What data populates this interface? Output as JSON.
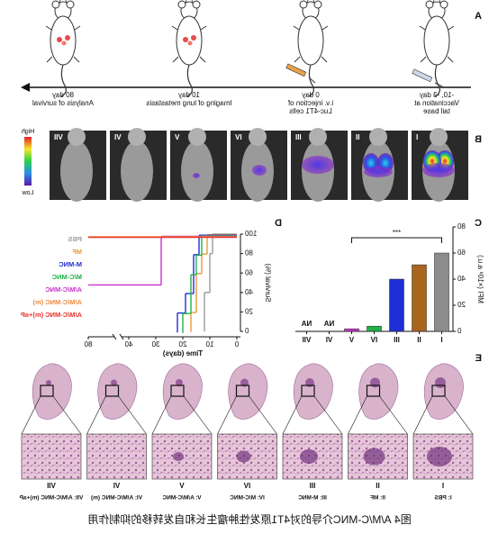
{
  "panel_a": {
    "label": "A",
    "steps": [
      {
        "day": "-10, -3 day",
        "lines": [
          "Vaccination at",
          "tail base"
        ]
      },
      {
        "day": "0 day",
        "lines": [
          "i.v. injection of",
          "Luc-4T1 cells"
        ]
      },
      {
        "day": "10 day",
        "lines": [
          "Imaging of lung metastasis"
        ]
      },
      {
        "day": "80 day",
        "lines": [
          "Analysis of survival"
        ]
      }
    ]
  },
  "panel_b": {
    "label": "B",
    "groups": [
      "I",
      "II",
      "III",
      "IV",
      "V",
      "VI",
      "VII"
    ],
    "scale_high": "High",
    "scale_low": "Low"
  },
  "chart_data": [
    {
      "type": "bar",
      "panel_label": "C",
      "y_label": "MFI (×10⁸ a.u.)",
      "categories": [
        "I",
        "II",
        "III",
        "IV",
        "V",
        "VI",
        "VII"
      ],
      "values": [
        60,
        51,
        40,
        4,
        2,
        null,
        null
      ],
      "value_labels": [
        null,
        null,
        null,
        null,
        null,
        "NA",
        "NA"
      ],
      "colors": [
        "#8c8c8c",
        "#a8651e",
        "#1f2fd6",
        "#21b04a",
        "#c832c8",
        "#888888",
        "#888888"
      ],
      "ylim": [
        0,
        80
      ],
      "yticks": [
        0,
        20,
        40,
        60,
        80
      ],
      "annotation": "***"
    },
    {
      "type": "line",
      "panel_label": "D",
      "x_label": "Time (days)",
      "y_label": "Survival (%)",
      "xlim": [
        0,
        80
      ],
      "xticks": [
        0,
        10,
        20,
        30,
        40,
        80
      ],
      "axis_break": [
        40,
        80
      ],
      "ylim": [
        0,
        100
      ],
      "yticks": [
        0,
        20,
        40,
        60,
        80,
        100
      ],
      "step": true,
      "series": [
        {
          "name": "PBS",
          "color": "#9a9a9a",
          "x": [
            0,
            9,
            10,
            12
          ],
          "values": [
            100,
            80,
            40,
            0
          ]
        },
        {
          "name": "MF",
          "color": "#e89a3c",
          "x": [
            0,
            11,
            13,
            15,
            17
          ],
          "values": [
            100,
            80,
            60,
            20,
            0
          ]
        },
        {
          "name": "M-MNC",
          "color": "#1f2fd6",
          "x": [
            0,
            14,
            16,
            19,
            22
          ],
          "values": [
            100,
            80,
            40,
            20,
            0
          ]
        },
        {
          "name": "M/C-MNC",
          "color": "#21b04a",
          "x": [
            0,
            13,
            15,
            17,
            20
          ],
          "values": [
            100,
            80,
            60,
            20,
            0
          ]
        },
        {
          "name": "A/M/C-MNC",
          "color": "#c832c8",
          "x": [
            0,
            28,
            80
          ],
          "values": [
            100,
            50,
            50
          ]
        },
        {
          "name": "A/M/C-MNC (m)",
          "color": "#f08a3c",
          "x": [
            0,
            80
          ],
          "values": [
            100,
            100
          ]
        },
        {
          "name": "A/M/C-MNC (m)+aP",
          "color": "#e8322a",
          "x": [
            0,
            80
          ],
          "values": [
            100,
            100
          ]
        }
      ]
    }
  ],
  "panel_e": {
    "label": "E",
    "groups": [
      "I",
      "II",
      "III",
      "IV",
      "V",
      "VI",
      "VII"
    ],
    "legend": [
      "I: PBS",
      "II: MF",
      "III: M-MNC",
      "IV: M/C-MNC",
      "V: A/M/C-MNC",
      "VI: A/M/C-MNC (m)",
      "VII: A/M/C-MNC (m)+aP"
    ]
  },
  "caption": "图4 A/M/C-MNC介导的对4T1原发性肿瘤生长和自发转移的抑制作用"
}
